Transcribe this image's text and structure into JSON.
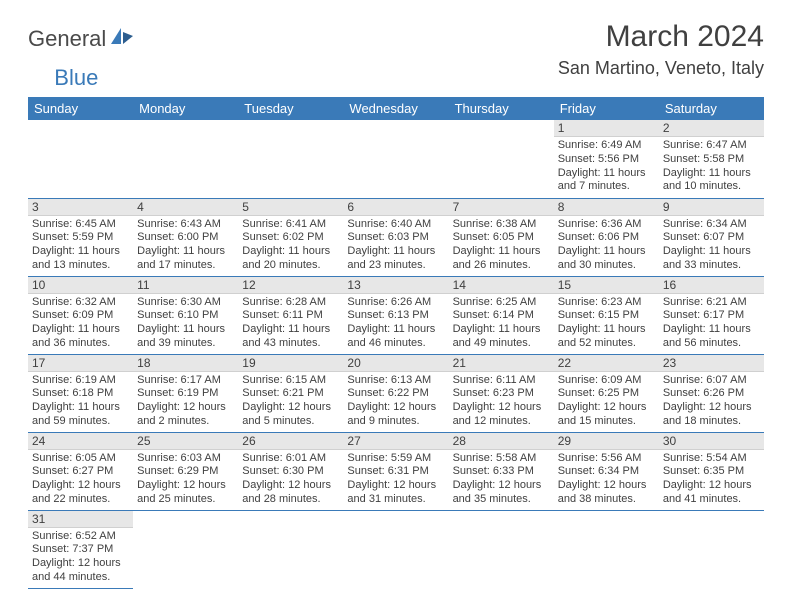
{
  "brand": {
    "part1": "General",
    "part2": "Blue"
  },
  "title": "March 2024",
  "location": "San Martino, Veneto, Italy",
  "colors": {
    "header_bg": "#3a7ab8",
    "header_text": "#ffffff",
    "daynum_bg": "#e7e7e7",
    "rule": "#3a7ab8",
    "text": "#404040",
    "background": "#ffffff"
  },
  "weekdays": [
    "Sunday",
    "Monday",
    "Tuesday",
    "Wednesday",
    "Thursday",
    "Friday",
    "Saturday"
  ],
  "weeks": [
    [
      null,
      null,
      null,
      null,
      null,
      {
        "n": "1",
        "sr": "Sunrise: 6:49 AM",
        "ss": "Sunset: 5:56 PM",
        "d1": "Daylight: 11 hours",
        "d2": "and 7 minutes."
      },
      {
        "n": "2",
        "sr": "Sunrise: 6:47 AM",
        "ss": "Sunset: 5:58 PM",
        "d1": "Daylight: 11 hours",
        "d2": "and 10 minutes."
      }
    ],
    [
      {
        "n": "3",
        "sr": "Sunrise: 6:45 AM",
        "ss": "Sunset: 5:59 PM",
        "d1": "Daylight: 11 hours",
        "d2": "and 13 minutes."
      },
      {
        "n": "4",
        "sr": "Sunrise: 6:43 AM",
        "ss": "Sunset: 6:00 PM",
        "d1": "Daylight: 11 hours",
        "d2": "and 17 minutes."
      },
      {
        "n": "5",
        "sr": "Sunrise: 6:41 AM",
        "ss": "Sunset: 6:02 PM",
        "d1": "Daylight: 11 hours",
        "d2": "and 20 minutes."
      },
      {
        "n": "6",
        "sr": "Sunrise: 6:40 AM",
        "ss": "Sunset: 6:03 PM",
        "d1": "Daylight: 11 hours",
        "d2": "and 23 minutes."
      },
      {
        "n": "7",
        "sr": "Sunrise: 6:38 AM",
        "ss": "Sunset: 6:05 PM",
        "d1": "Daylight: 11 hours",
        "d2": "and 26 minutes."
      },
      {
        "n": "8",
        "sr": "Sunrise: 6:36 AM",
        "ss": "Sunset: 6:06 PM",
        "d1": "Daylight: 11 hours",
        "d2": "and 30 minutes."
      },
      {
        "n": "9",
        "sr": "Sunrise: 6:34 AM",
        "ss": "Sunset: 6:07 PM",
        "d1": "Daylight: 11 hours",
        "d2": "and 33 minutes."
      }
    ],
    [
      {
        "n": "10",
        "sr": "Sunrise: 6:32 AM",
        "ss": "Sunset: 6:09 PM",
        "d1": "Daylight: 11 hours",
        "d2": "and 36 minutes."
      },
      {
        "n": "11",
        "sr": "Sunrise: 6:30 AM",
        "ss": "Sunset: 6:10 PM",
        "d1": "Daylight: 11 hours",
        "d2": "and 39 minutes."
      },
      {
        "n": "12",
        "sr": "Sunrise: 6:28 AM",
        "ss": "Sunset: 6:11 PM",
        "d1": "Daylight: 11 hours",
        "d2": "and 43 minutes."
      },
      {
        "n": "13",
        "sr": "Sunrise: 6:26 AM",
        "ss": "Sunset: 6:13 PM",
        "d1": "Daylight: 11 hours",
        "d2": "and 46 minutes."
      },
      {
        "n": "14",
        "sr": "Sunrise: 6:25 AM",
        "ss": "Sunset: 6:14 PM",
        "d1": "Daylight: 11 hours",
        "d2": "and 49 minutes."
      },
      {
        "n": "15",
        "sr": "Sunrise: 6:23 AM",
        "ss": "Sunset: 6:15 PM",
        "d1": "Daylight: 11 hours",
        "d2": "and 52 minutes."
      },
      {
        "n": "16",
        "sr": "Sunrise: 6:21 AM",
        "ss": "Sunset: 6:17 PM",
        "d1": "Daylight: 11 hours",
        "d2": "and 56 minutes."
      }
    ],
    [
      {
        "n": "17",
        "sr": "Sunrise: 6:19 AM",
        "ss": "Sunset: 6:18 PM",
        "d1": "Daylight: 11 hours",
        "d2": "and 59 minutes."
      },
      {
        "n": "18",
        "sr": "Sunrise: 6:17 AM",
        "ss": "Sunset: 6:19 PM",
        "d1": "Daylight: 12 hours",
        "d2": "and 2 minutes."
      },
      {
        "n": "19",
        "sr": "Sunrise: 6:15 AM",
        "ss": "Sunset: 6:21 PM",
        "d1": "Daylight: 12 hours",
        "d2": "and 5 minutes."
      },
      {
        "n": "20",
        "sr": "Sunrise: 6:13 AM",
        "ss": "Sunset: 6:22 PM",
        "d1": "Daylight: 12 hours",
        "d2": "and 9 minutes."
      },
      {
        "n": "21",
        "sr": "Sunrise: 6:11 AM",
        "ss": "Sunset: 6:23 PM",
        "d1": "Daylight: 12 hours",
        "d2": "and 12 minutes."
      },
      {
        "n": "22",
        "sr": "Sunrise: 6:09 AM",
        "ss": "Sunset: 6:25 PM",
        "d1": "Daylight: 12 hours",
        "d2": "and 15 minutes."
      },
      {
        "n": "23",
        "sr": "Sunrise: 6:07 AM",
        "ss": "Sunset: 6:26 PM",
        "d1": "Daylight: 12 hours",
        "d2": "and 18 minutes."
      }
    ],
    [
      {
        "n": "24",
        "sr": "Sunrise: 6:05 AM",
        "ss": "Sunset: 6:27 PM",
        "d1": "Daylight: 12 hours",
        "d2": "and 22 minutes."
      },
      {
        "n": "25",
        "sr": "Sunrise: 6:03 AM",
        "ss": "Sunset: 6:29 PM",
        "d1": "Daylight: 12 hours",
        "d2": "and 25 minutes."
      },
      {
        "n": "26",
        "sr": "Sunrise: 6:01 AM",
        "ss": "Sunset: 6:30 PM",
        "d1": "Daylight: 12 hours",
        "d2": "and 28 minutes."
      },
      {
        "n": "27",
        "sr": "Sunrise: 5:59 AM",
        "ss": "Sunset: 6:31 PM",
        "d1": "Daylight: 12 hours",
        "d2": "and 31 minutes."
      },
      {
        "n": "28",
        "sr": "Sunrise: 5:58 AM",
        "ss": "Sunset: 6:33 PM",
        "d1": "Daylight: 12 hours",
        "d2": "and 35 minutes."
      },
      {
        "n": "29",
        "sr": "Sunrise: 5:56 AM",
        "ss": "Sunset: 6:34 PM",
        "d1": "Daylight: 12 hours",
        "d2": "and 38 minutes."
      },
      {
        "n": "30",
        "sr": "Sunrise: 5:54 AM",
        "ss": "Sunset: 6:35 PM",
        "d1": "Daylight: 12 hours",
        "d2": "and 41 minutes."
      }
    ],
    [
      {
        "n": "31",
        "sr": "Sunrise: 6:52 AM",
        "ss": "Sunset: 7:37 PM",
        "d1": "Daylight: 12 hours",
        "d2": "and 44 minutes."
      },
      null,
      null,
      null,
      null,
      null,
      null
    ]
  ]
}
